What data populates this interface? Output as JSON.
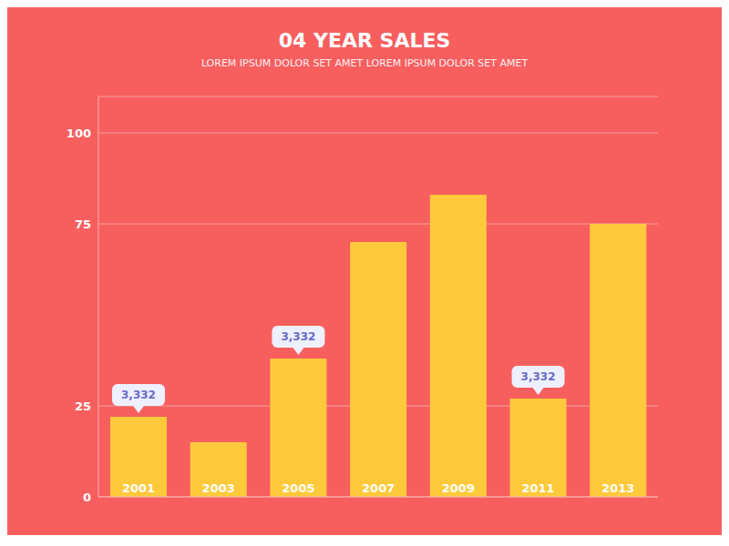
{
  "chart_data": {
    "type": "bar",
    "title": "04 YEAR SALES",
    "subtitle": "LOREM IPSUM DOLOR SET AMET LOREM IPSUM DOLOR SET AMET",
    "categories": [
      "2001",
      "2003",
      "2005",
      "2007",
      "2009",
      "2011",
      "2013"
    ],
    "values": [
      22,
      15,
      38,
      70,
      83,
      27,
      75
    ],
    "color": "#FFC93C",
    "ylim": [
      0,
      110
    ],
    "yticks": [
      0,
      25,
      75,
      100
    ],
    "grid": true,
    "tick_labels": "y",
    "annotations": [
      {
        "x": "2001",
        "text": "3,332"
      },
      {
        "x": "2005",
        "text": "3,332"
      },
      {
        "x": "2011",
        "text": "3,332"
      }
    ]
  }
}
